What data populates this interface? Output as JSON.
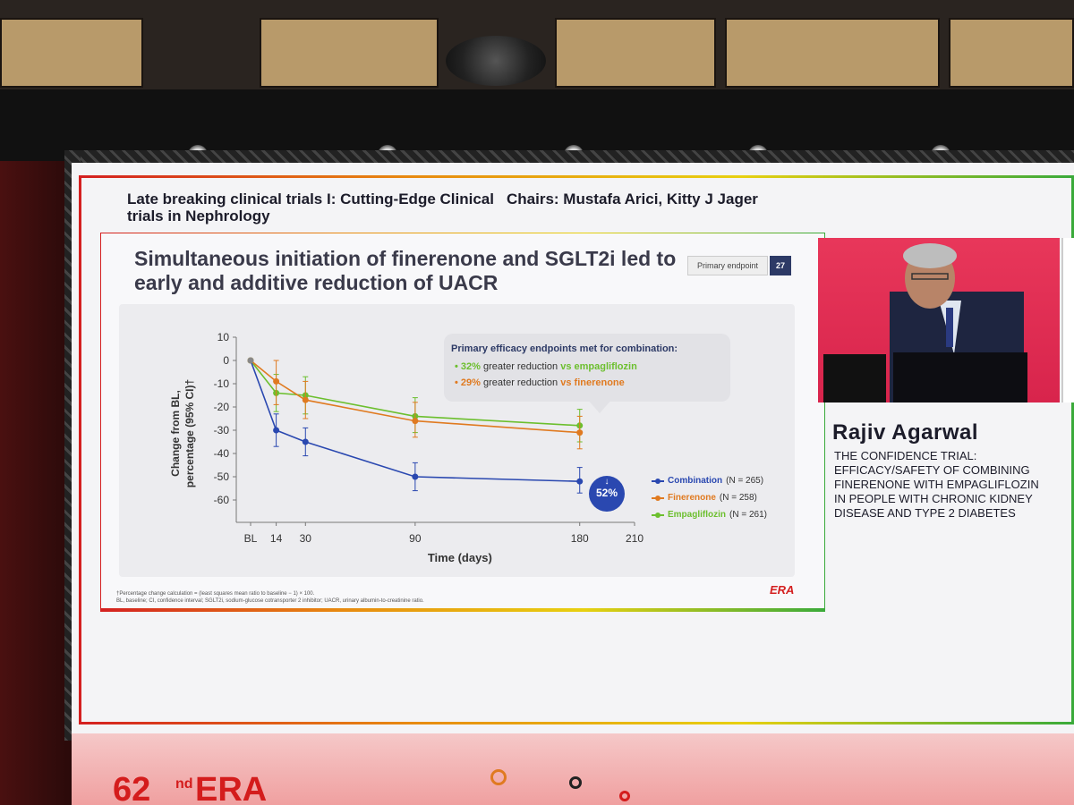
{
  "session": {
    "title": "Late breaking clinical trials I: Cutting-Edge Clinical trials in Nephrology",
    "chairs": "Chairs: Mustafa Arici, Kitty J Jager"
  },
  "slide": {
    "title": "Simultaneous initiation of finerenone and SGLT2i led to early and additive reduction of UACR",
    "tag": "Primary endpoint",
    "page": "27",
    "callout": {
      "heading": "Primary efficacy endpoints met for combination:",
      "line1_pct": "32%",
      "line1_text": " greater reduction ",
      "line1_vs": "vs empagliflozin",
      "line2_pct": "29%",
      "line2_text": " greater reduction ",
      "line2_vs": "vs finerenone",
      "bullet": "•"
    },
    "badge": {
      "arrow": "↓",
      "value": "52%"
    },
    "footnote1": "†Percentage change calculation = (least squares mean ratio to baseline − 1) × 100.",
    "footnote2": "BL, baseline; CI, confidence interval; SGLT2i, sodium-glucose cotransporter 2 inhibitor; UACR, urinary albumin-to-creatinine ratio.",
    "logo": "ERA"
  },
  "chart_data": {
    "type": "line",
    "xlabel": "Time (days)",
    "ylabel_line1": "Change from BL,",
    "ylabel_line2": "percentage (95% CI)†",
    "x_ticks": [
      "BL",
      "14",
      "30",
      "90",
      "180",
      "210"
    ],
    "x_tick_values": [
      0,
      14,
      30,
      90,
      180,
      210
    ],
    "y_ticks": [
      "10",
      "0",
      "-10",
      "-20",
      "-30",
      "-40",
      "-50",
      "-60"
    ],
    "ylim": [
      -65,
      10
    ],
    "xlim": [
      0,
      210
    ],
    "series": [
      {
        "name": "Combination",
        "n": "(N = 265)",
        "color": "#2a48b0",
        "x": [
          0,
          14,
          30,
          90,
          180
        ],
        "y": [
          0,
          -30,
          -35,
          -50,
          -52
        ],
        "err_low": [
          0,
          -37,
          -41,
          -56,
          -57
        ],
        "err_high": [
          0,
          -23,
          -29,
          -44,
          -46
        ]
      },
      {
        "name": "Finerenone",
        "n": "(N = 258)",
        "color": "#e07a20",
        "x": [
          0,
          14,
          30,
          90,
          180
        ],
        "y": [
          0,
          -9,
          -17,
          -26,
          -31
        ],
        "err_low": [
          0,
          -19,
          -25,
          -33,
          -38
        ],
        "err_high": [
          0,
          0,
          -9,
          -18,
          -24
        ]
      },
      {
        "name": "Empagliflozin",
        "n": "(N = 261)",
        "color": "#6cbf2e",
        "x": [
          0,
          14,
          30,
          90,
          180
        ],
        "y": [
          0,
          -14,
          -15,
          -24,
          -28
        ],
        "err_low": [
          0,
          -22,
          -23,
          -31,
          -35
        ],
        "err_high": [
          0,
          -6,
          -7,
          -16,
          -21
        ]
      }
    ]
  },
  "speaker": {
    "name": "Rajiv Agarwal",
    "talk": "THE CONFIDENCE TRIAL: EFFICACY/SAFETY OF COMBINING FINERENONE WITH EMPAGLIFLOZIN IN PEOPLE WITH CHRONIC KIDNEY DISEASE AND TYPE 2 DIABETES"
  },
  "banner": {
    "num": "62",
    "sup": "nd",
    "era": "ERA"
  }
}
